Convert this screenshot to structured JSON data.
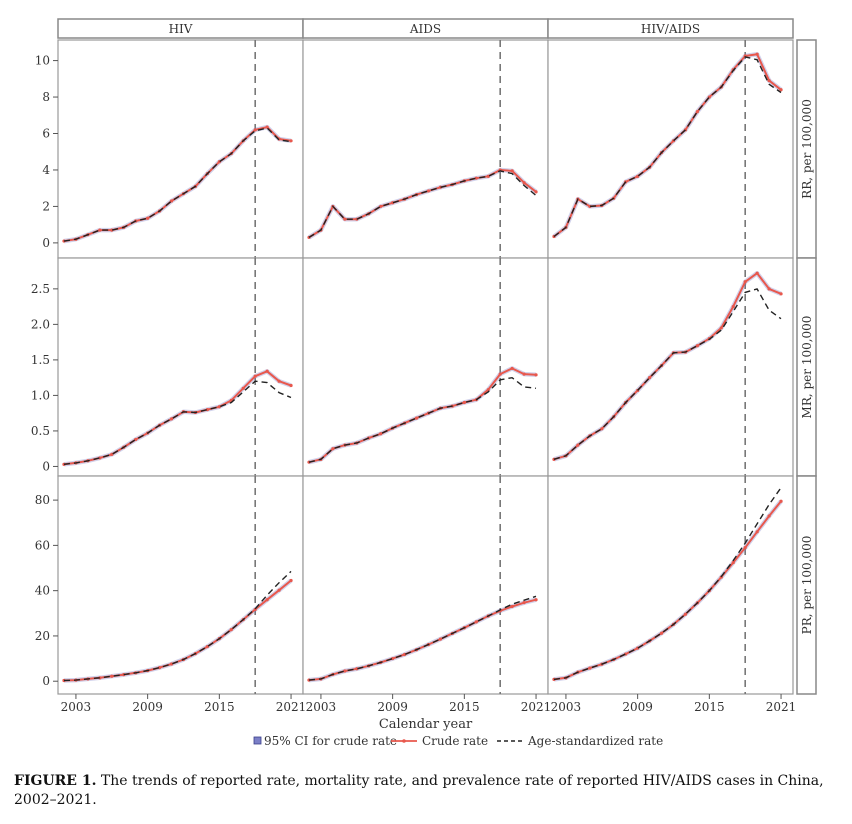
{
  "chart_data": {
    "type": "line",
    "columns": [
      "HIV",
      "AIDS",
      "HIV/AIDS"
    ],
    "rows": [
      "RR, per 100,000",
      "MR, per 100,000",
      "PR, per 100,000"
    ],
    "xlabel": "Calendar year",
    "x_tick_labels": [
      "2003",
      "2009",
      "2015",
      "2021"
    ],
    "x_ticks": [
      2003,
      2009,
      2015,
      2021
    ],
    "xlim": [
      2001.5,
      2022
    ],
    "reference_line_x": 2018,
    "years": [
      2002,
      2003,
      2004,
      2005,
      2006,
      2007,
      2008,
      2009,
      2010,
      2011,
      2012,
      2013,
      2014,
      2015,
      2016,
      2017,
      2018,
      2019,
      2020,
      2021
    ],
    "legend": [
      "95% CI for crude rate",
      "Crude rate",
      "Age-standardized rate"
    ],
    "series_colors": {
      "ci": "#7b7fc7",
      "crude": "#e8584d",
      "age_std": "#222222"
    },
    "row_axes": [
      {
        "ylim": [
          -0.5,
          10.8
        ],
        "y_ticks": [
          0,
          2,
          4,
          6,
          8,
          10
        ],
        "y_tick_labels": [
          "0",
          "2",
          "4",
          "6",
          "8",
          "10"
        ]
      },
      {
        "ylim": [
          -0.05,
          2.85
        ],
        "y_ticks": [
          0,
          0.5,
          1,
          1.5,
          2,
          2.5
        ],
        "y_tick_labels": [
          "0",
          "0.5",
          "1.0",
          "1.5",
          "2.0",
          "2.5"
        ]
      },
      {
        "ylim": [
          -3,
          88
        ],
        "y_ticks": [
          0,
          20,
          40,
          60,
          80
        ],
        "y_tick_labels": [
          "0",
          "20",
          "40",
          "60",
          "80"
        ]
      }
    ],
    "panels": [
      [
        {
          "crude": [
            0.1,
            0.2,
            0.45,
            0.7,
            0.7,
            0.85,
            1.2,
            1.35,
            1.75,
            2.3,
            2.7,
            3.1,
            3.8,
            4.45,
            4.9,
            5.6,
            6.2,
            6.35,
            5.7,
            5.6
          ],
          "age_std": [
            0.1,
            0.2,
            0.45,
            0.7,
            0.7,
            0.85,
            1.2,
            1.35,
            1.75,
            2.3,
            2.7,
            3.1,
            3.8,
            4.45,
            4.9,
            5.6,
            6.15,
            6.3,
            5.65,
            5.55
          ]
        },
        {
          "crude": [
            0.3,
            0.7,
            2.0,
            1.3,
            1.3,
            1.6,
            2.0,
            2.2,
            2.4,
            2.65,
            2.85,
            3.05,
            3.2,
            3.4,
            3.55,
            3.65,
            4.0,
            3.95,
            3.3,
            2.8
          ],
          "age_std": [
            0.3,
            0.7,
            2.0,
            1.3,
            1.3,
            1.6,
            2.0,
            2.2,
            2.4,
            2.65,
            2.85,
            3.05,
            3.2,
            3.4,
            3.55,
            3.65,
            3.95,
            3.8,
            3.15,
            2.6
          ]
        },
        {
          "crude": [
            0.35,
            0.85,
            2.4,
            2.0,
            2.05,
            2.45,
            3.35,
            3.65,
            4.15,
            4.95,
            5.6,
            6.2,
            7.2,
            8.0,
            8.55,
            9.5,
            10.25,
            10.35,
            8.9,
            8.4
          ],
          "age_std": [
            0.35,
            0.85,
            2.4,
            2.0,
            2.05,
            2.45,
            3.35,
            3.65,
            4.15,
            4.95,
            5.6,
            6.2,
            7.2,
            8.0,
            8.55,
            9.45,
            10.2,
            10.05,
            8.7,
            8.25
          ]
        }
      ],
      [
        {
          "crude": [
            0.03,
            0.05,
            0.08,
            0.12,
            0.17,
            0.27,
            0.38,
            0.47,
            0.58,
            0.67,
            0.77,
            0.76,
            0.8,
            0.84,
            0.93,
            1.1,
            1.27,
            1.34,
            1.2,
            1.14
          ],
          "age_std": [
            0.03,
            0.05,
            0.08,
            0.12,
            0.17,
            0.27,
            0.38,
            0.47,
            0.58,
            0.67,
            0.77,
            0.76,
            0.8,
            0.84,
            0.9,
            1.05,
            1.2,
            1.18,
            1.04,
            0.97
          ]
        },
        {
          "crude": [
            0.06,
            0.1,
            0.25,
            0.3,
            0.33,
            0.4,
            0.46,
            0.54,
            0.61,
            0.68,
            0.75,
            0.82,
            0.85,
            0.9,
            0.94,
            1.08,
            1.3,
            1.38,
            1.3,
            1.29
          ],
          "age_std": [
            0.06,
            0.1,
            0.25,
            0.3,
            0.33,
            0.4,
            0.46,
            0.54,
            0.61,
            0.68,
            0.75,
            0.82,
            0.85,
            0.9,
            0.94,
            1.05,
            1.22,
            1.25,
            1.12,
            1.1
          ]
        },
        {
          "crude": [
            0.1,
            0.15,
            0.3,
            0.43,
            0.53,
            0.7,
            0.9,
            1.07,
            1.25,
            1.42,
            1.6,
            1.61,
            1.7,
            1.8,
            1.95,
            2.25,
            2.6,
            2.72,
            2.5,
            2.43
          ],
          "age_std": [
            0.1,
            0.15,
            0.3,
            0.43,
            0.53,
            0.7,
            0.9,
            1.07,
            1.25,
            1.42,
            1.6,
            1.61,
            1.7,
            1.79,
            1.92,
            2.18,
            2.45,
            2.5,
            2.2,
            2.08
          ]
        }
      ],
      [
        {
          "crude": [
            0.3,
            0.5,
            1.0,
            1.5,
            2.2,
            2.9,
            3.7,
            4.7,
            6.0,
            7.6,
            9.6,
            12.2,
            15.3,
            18.8,
            22.8,
            27.2,
            31.7,
            36.0,
            40.2,
            44.5
          ],
          "age_std": [
            0.3,
            0.5,
            1.0,
            1.5,
            2.2,
            2.9,
            3.7,
            4.7,
            6.0,
            7.6,
            9.6,
            12.2,
            15.3,
            18.8,
            22.8,
            27.2,
            32.0,
            38.0,
            43.5,
            48.5
          ]
        },
        {
          "crude": [
            0.5,
            1.0,
            3.0,
            4.5,
            5.5,
            6.8,
            8.3,
            10.0,
            11.8,
            13.9,
            16.2,
            18.6,
            21.1,
            23.6,
            26.2,
            28.8,
            31.1,
            33.0,
            34.7,
            36.0
          ],
          "age_std": [
            0.5,
            1.0,
            3.0,
            4.5,
            5.5,
            6.8,
            8.3,
            10.0,
            11.8,
            13.9,
            16.2,
            18.6,
            21.1,
            23.6,
            26.2,
            28.8,
            31.5,
            34.0,
            35.8,
            37.5
          ]
        },
        {
          "crude": [
            0.8,
            1.5,
            4.0,
            5.8,
            7.5,
            9.6,
            12.0,
            14.6,
            17.8,
            21.2,
            25.1,
            29.6,
            34.6,
            40.0,
            46.0,
            52.4,
            59.0,
            66.0,
            73.0,
            79.5
          ],
          "age_std": [
            0.8,
            1.5,
            4.0,
            5.8,
            7.5,
            9.6,
            12.0,
            14.6,
            17.8,
            21.2,
            25.1,
            29.6,
            34.6,
            40.0,
            46.2,
            53.3,
            61.0,
            69.5,
            78.0,
            85.5
          ]
        }
      ]
    ]
  },
  "caption": {
    "label": "FIGURE 1.",
    "text": "The trends of reported rate, mortality rate, and prevalence rate of reported HIV/AIDS cases in China, 2002–2021."
  }
}
